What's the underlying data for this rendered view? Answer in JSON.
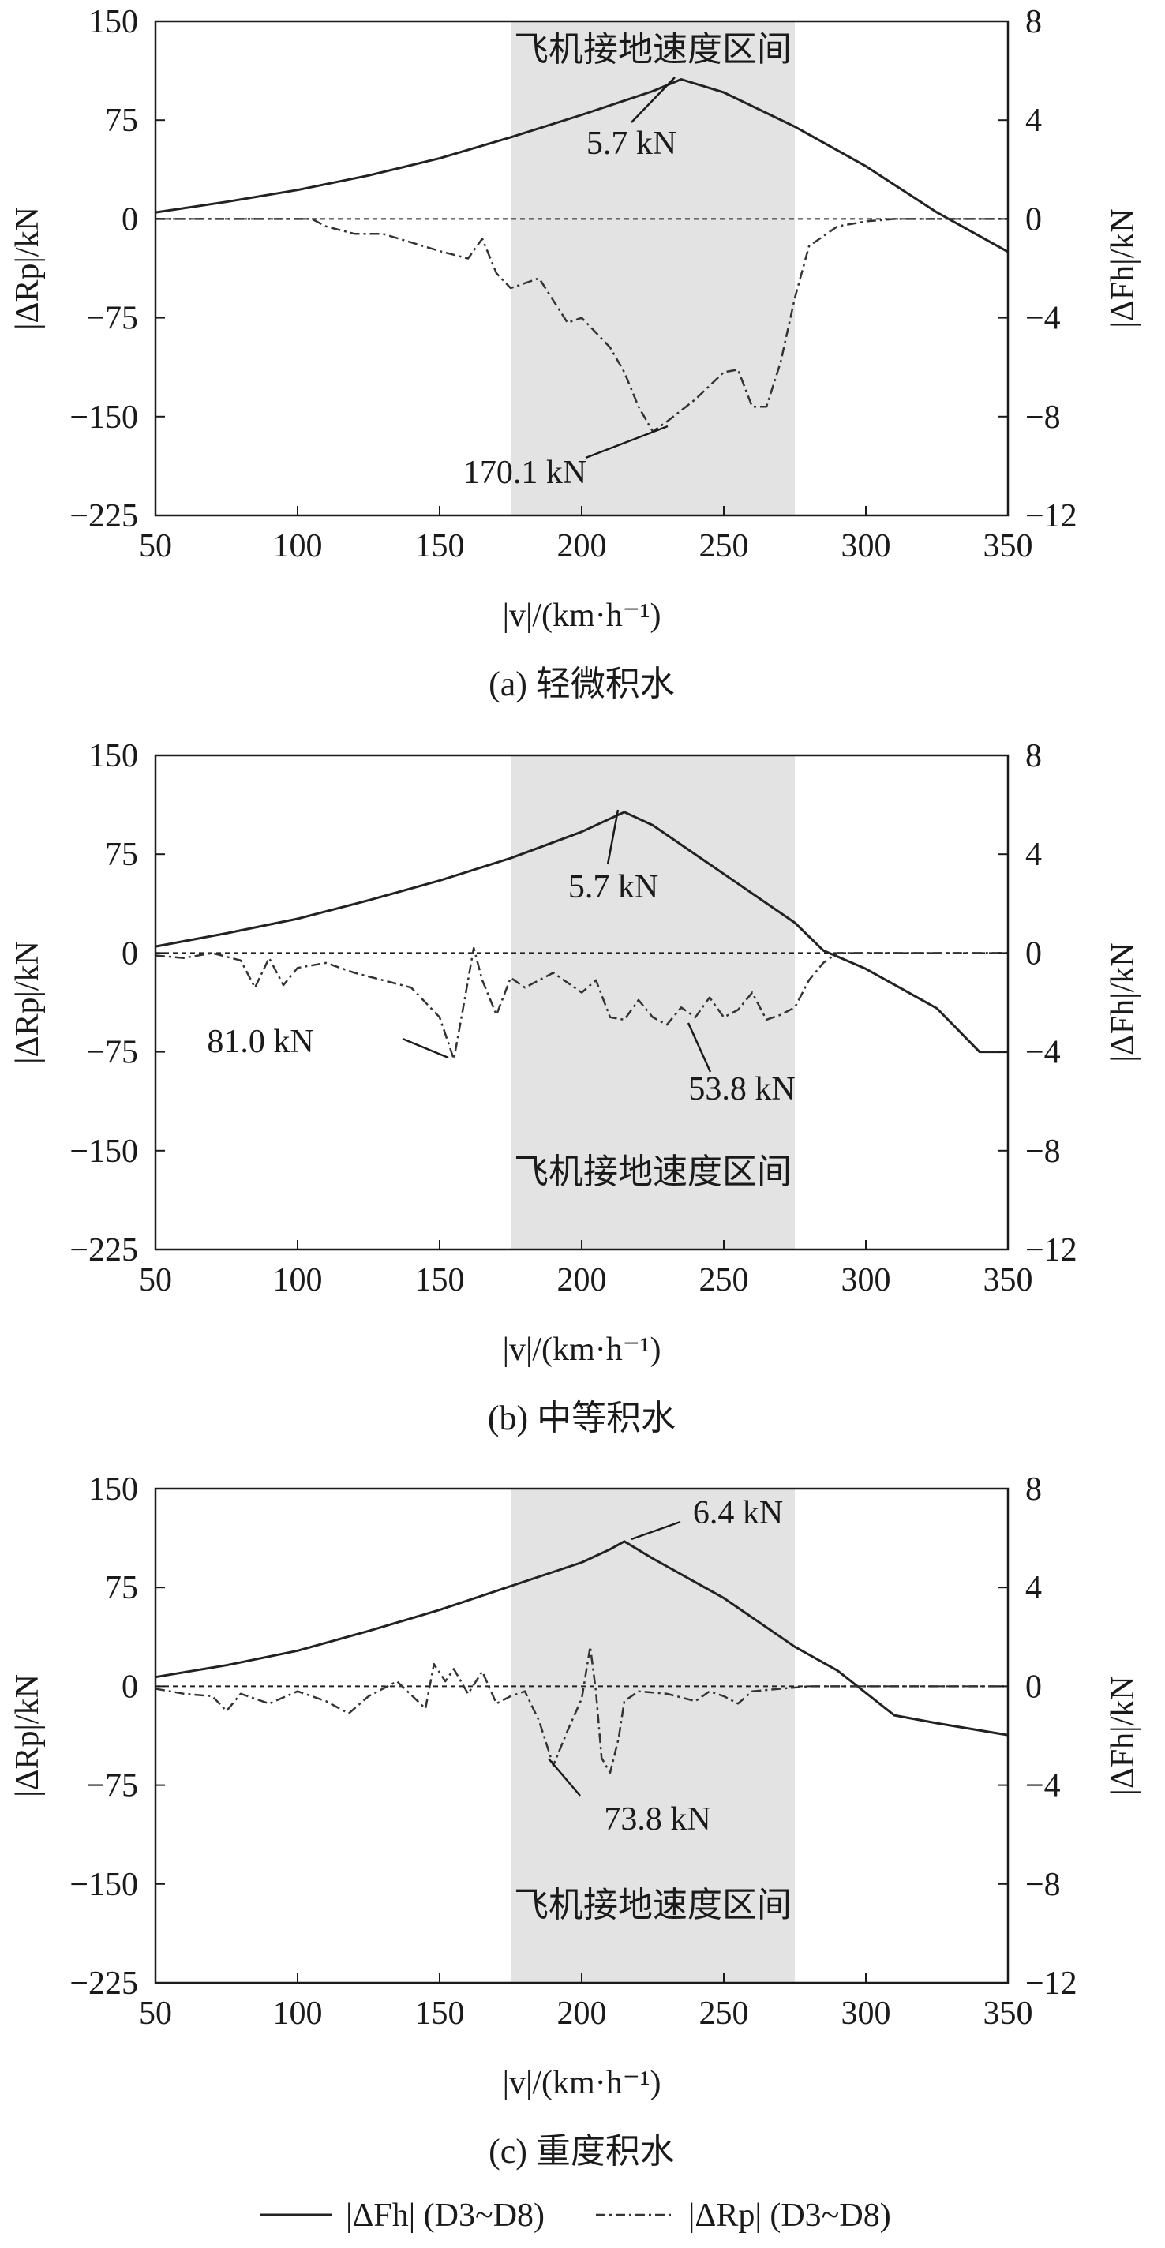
{
  "chart_data": [
    {
      "type": "line",
      "caption": "(a) 轻微积水",
      "xlabel": "|v|/(km·h⁻¹)",
      "ylabel_left": "|ΔRp|/kN",
      "ylabel_right": "|ΔFh|/kN",
      "xlim": [
        50,
        350
      ],
      "ylim_left": [
        -225,
        150
      ],
      "ylim_right": [
        -12,
        8
      ],
      "x_ticks": [
        "50",
        "100",
        "150",
        "200",
        "250",
        "300",
        "350"
      ],
      "y_ticks_left": [
        "150",
        "75",
        "0",
        "−75",
        "−150",
        "−225"
      ],
      "y_ticks_right": [
        "8",
        "4",
        "0",
        "−4",
        "−8",
        "−12"
      ],
      "grid": false,
      "shaded_band": {
        "x_from": 175,
        "x_to": 275,
        "label": "飞机接地速度区间"
      },
      "series": [
        {
          "name": "|ΔFh| (D3~D8)",
          "axis": "left",
          "style": "solid",
          "x": [
            50,
            75,
            100,
            125,
            150,
            175,
            200,
            225,
            235,
            250,
            275,
            300,
            325,
            350
          ],
          "y": [
            5,
            13,
            22,
            33,
            46,
            62,
            79,
            97,
            106,
            96,
            70,
            40,
            5,
            -25
          ]
        },
        {
          "name": "|ΔRp| (D3~D8)",
          "axis": "right",
          "style": "dashdot",
          "x": [
            50,
            105,
            110,
            120,
            130,
            150,
            160,
            165,
            170,
            175,
            185,
            195,
            200,
            205,
            210,
            215,
            220,
            225,
            230,
            240,
            250,
            255,
            260,
            265,
            270,
            275,
            280,
            290,
            300,
            310,
            320,
            350
          ],
          "y": [
            0,
            0,
            -0.3,
            -0.6,
            -0.6,
            -1.3,
            -1.6,
            -0.8,
            -2.2,
            -2.8,
            -2.4,
            -4.2,
            -4.0,
            -4.6,
            -5.2,
            -6.2,
            -7.6,
            -8.6,
            -8.2,
            -7.3,
            -6.2,
            -6.1,
            -7.6,
            -7.6,
            -5.8,
            -3.2,
            -1.1,
            -0.3,
            -0.1,
            0,
            0,
            0
          ]
        }
      ],
      "annotations": [
        "5.7 kN",
        "170.1 kN"
      ]
    },
    {
      "type": "line",
      "caption": "(b) 中等积水",
      "xlabel": "|v|/(km·h⁻¹)",
      "ylabel_left": "|ΔRp|/kN",
      "ylabel_right": "|ΔFh|/kN",
      "xlim": [
        50,
        350
      ],
      "ylim_left": [
        -225,
        150
      ],
      "ylim_right": [
        -12,
        8
      ],
      "x_ticks": [
        "50",
        "100",
        "150",
        "200",
        "250",
        "300",
        "350"
      ],
      "y_ticks_left": [
        "150",
        "75",
        "0",
        "−75",
        "−150",
        "−225"
      ],
      "y_ticks_right": [
        "8",
        "4",
        "0",
        "−4",
        "−8",
        "−12"
      ],
      "grid": false,
      "shaded_band": {
        "x_from": 175,
        "x_to": 275,
        "label": "飞机接地速度区间"
      },
      "series": [
        {
          "name": "|ΔFh| (D3~D8)",
          "axis": "left",
          "style": "solid",
          "x": [
            50,
            75,
            100,
            125,
            150,
            175,
            200,
            215,
            225,
            250,
            275,
            285,
            300,
            325,
            340,
            350
          ],
          "y": [
            5,
            15,
            26,
            40,
            55,
            72,
            92,
            107,
            97,
            60,
            23,
            2,
            -12,
            -42,
            -75,
            -75
          ]
        },
        {
          "name": "|ΔRp| (D3~D8)",
          "axis": "right",
          "style": "dashdot",
          "x": [
            50,
            60,
            70,
            80,
            85,
            90,
            95,
            100,
            110,
            120,
            130,
            140,
            150,
            155,
            158,
            162,
            165,
            170,
            175,
            180,
            190,
            200,
            205,
            210,
            215,
            220,
            225,
            230,
            235,
            240,
            245,
            250,
            255,
            260,
            265,
            270,
            275,
            280,
            285,
            290,
            300,
            350
          ],
          "y": [
            -0.1,
            -0.2,
            0,
            -0.3,
            -1.4,
            -0.2,
            -1.3,
            -0.6,
            -0.4,
            -0.8,
            -1.1,
            -1.4,
            -2.6,
            -4.3,
            -2.4,
            0.2,
            -1.1,
            -2.5,
            -1.0,
            -1.4,
            -0.8,
            -1.6,
            -1.1,
            -2.6,
            -2.7,
            -1.9,
            -2.6,
            -2.9,
            -2.2,
            -2.6,
            -1.8,
            -2.6,
            -2.3,
            -1.6,
            -2.7,
            -2.5,
            -2.2,
            -1.1,
            -0.4,
            0,
            0,
            0
          ]
        }
      ],
      "annotations": [
        "5.7 kN",
        "81.0 kN",
        "53.8 kN"
      ]
    },
    {
      "type": "line",
      "caption": "(c) 重度积水",
      "xlabel": "|v|/(km·h⁻¹)",
      "ylabel_left": "|ΔRp|/kN",
      "ylabel_right": "|ΔFh|/kN",
      "xlim": [
        50,
        350
      ],
      "ylim_left": [
        -225,
        150
      ],
      "ylim_right": [
        -12,
        8
      ],
      "x_ticks": [
        "50",
        "100",
        "150",
        "200",
        "250",
        "300",
        "350"
      ],
      "y_ticks_left": [
        "150",
        "75",
        "0",
        "−75",
        "−150",
        "−225"
      ],
      "y_ticks_right": [
        "8",
        "4",
        "0",
        "−4",
        "−8",
        "−12"
      ],
      "grid": false,
      "shaded_band": {
        "x_from": 175,
        "x_to": 275,
        "label": "飞机接地速度区间"
      },
      "series": [
        {
          "name": "|ΔFh| (D3~D8)",
          "axis": "left",
          "style": "solid",
          "x": [
            50,
            75,
            100,
            125,
            150,
            175,
            200,
            210,
            215,
            225,
            250,
            275,
            290,
            300,
            310,
            325,
            350
          ],
          "y": [
            7,
            16,
            27,
            42,
            58,
            76,
            94,
            104,
            110,
            97,
            67,
            30,
            12,
            -5,
            -22,
            -28,
            -37
          ]
        },
        {
          "name": "|ΔRp| (D3~D8)",
          "axis": "right",
          "style": "dashdot",
          "x": [
            50,
            60,
            70,
            75,
            80,
            90,
            100,
            110,
            118,
            125,
            135,
            145,
            148,
            152,
            155,
            160,
            165,
            170,
            175,
            180,
            185,
            190,
            195,
            200,
            203,
            205,
            207,
            210,
            213,
            215,
            220,
            230,
            240,
            245,
            250,
            255,
            260,
            270,
            280,
            300,
            350
          ],
          "y": [
            -0.1,
            -0.3,
            -0.4,
            -1.0,
            -0.3,
            -0.7,
            -0.2,
            -0.6,
            -1.1,
            -0.4,
            0.2,
            -0.9,
            0.9,
            0.2,
            0.7,
            -0.3,
            0.6,
            -0.7,
            -0.4,
            -0.2,
            -1.4,
            -3.2,
            -1.8,
            -0.5,
            1.6,
            -0.2,
            -2.9,
            -3.5,
            -2.1,
            -0.6,
            -0.2,
            -0.3,
            -0.6,
            -0.2,
            -0.4,
            -0.7,
            -0.2,
            -0.1,
            0,
            0,
            0
          ]
        }
      ],
      "annotations": [
        "6.4 kN",
        "73.8 kN"
      ]
    }
  ],
  "legend": {
    "entries": [
      "|ΔFh| (D3~D8)",
      "|ΔRp| (D3~D8)"
    ],
    "placement": "bottom"
  },
  "colors": {
    "solid_line": "#222222",
    "dashdot_line": "#333333",
    "band": "#e3e3e3",
    "axis": "#1a1a1a"
  }
}
